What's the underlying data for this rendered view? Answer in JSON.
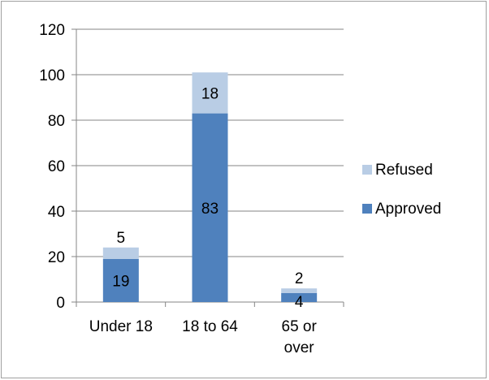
{
  "chart_data": {
    "type": "bar",
    "stacked": true,
    "categories": [
      "Under 18",
      "18 to 64",
      "65 or over"
    ],
    "category_display": [
      [
        "Under 18"
      ],
      [
        "18 to 64"
      ],
      [
        "65 or",
        "over"
      ]
    ],
    "series": [
      {
        "name": "Approved",
        "values": [
          19,
          83,
          4
        ],
        "color": "#4f81bd"
      },
      {
        "name": "Refused",
        "values": [
          5,
          18,
          2
        ],
        "color": "#b9cde5"
      }
    ],
    "title": "",
    "xlabel": "",
    "ylabel": "",
    "ylim": [
      0,
      120
    ],
    "yticks": [
      0,
      20,
      40,
      60,
      80,
      100,
      120
    ],
    "grid": true,
    "legend_position": "right",
    "legend_order": [
      "Refused",
      "Approved"
    ]
  }
}
